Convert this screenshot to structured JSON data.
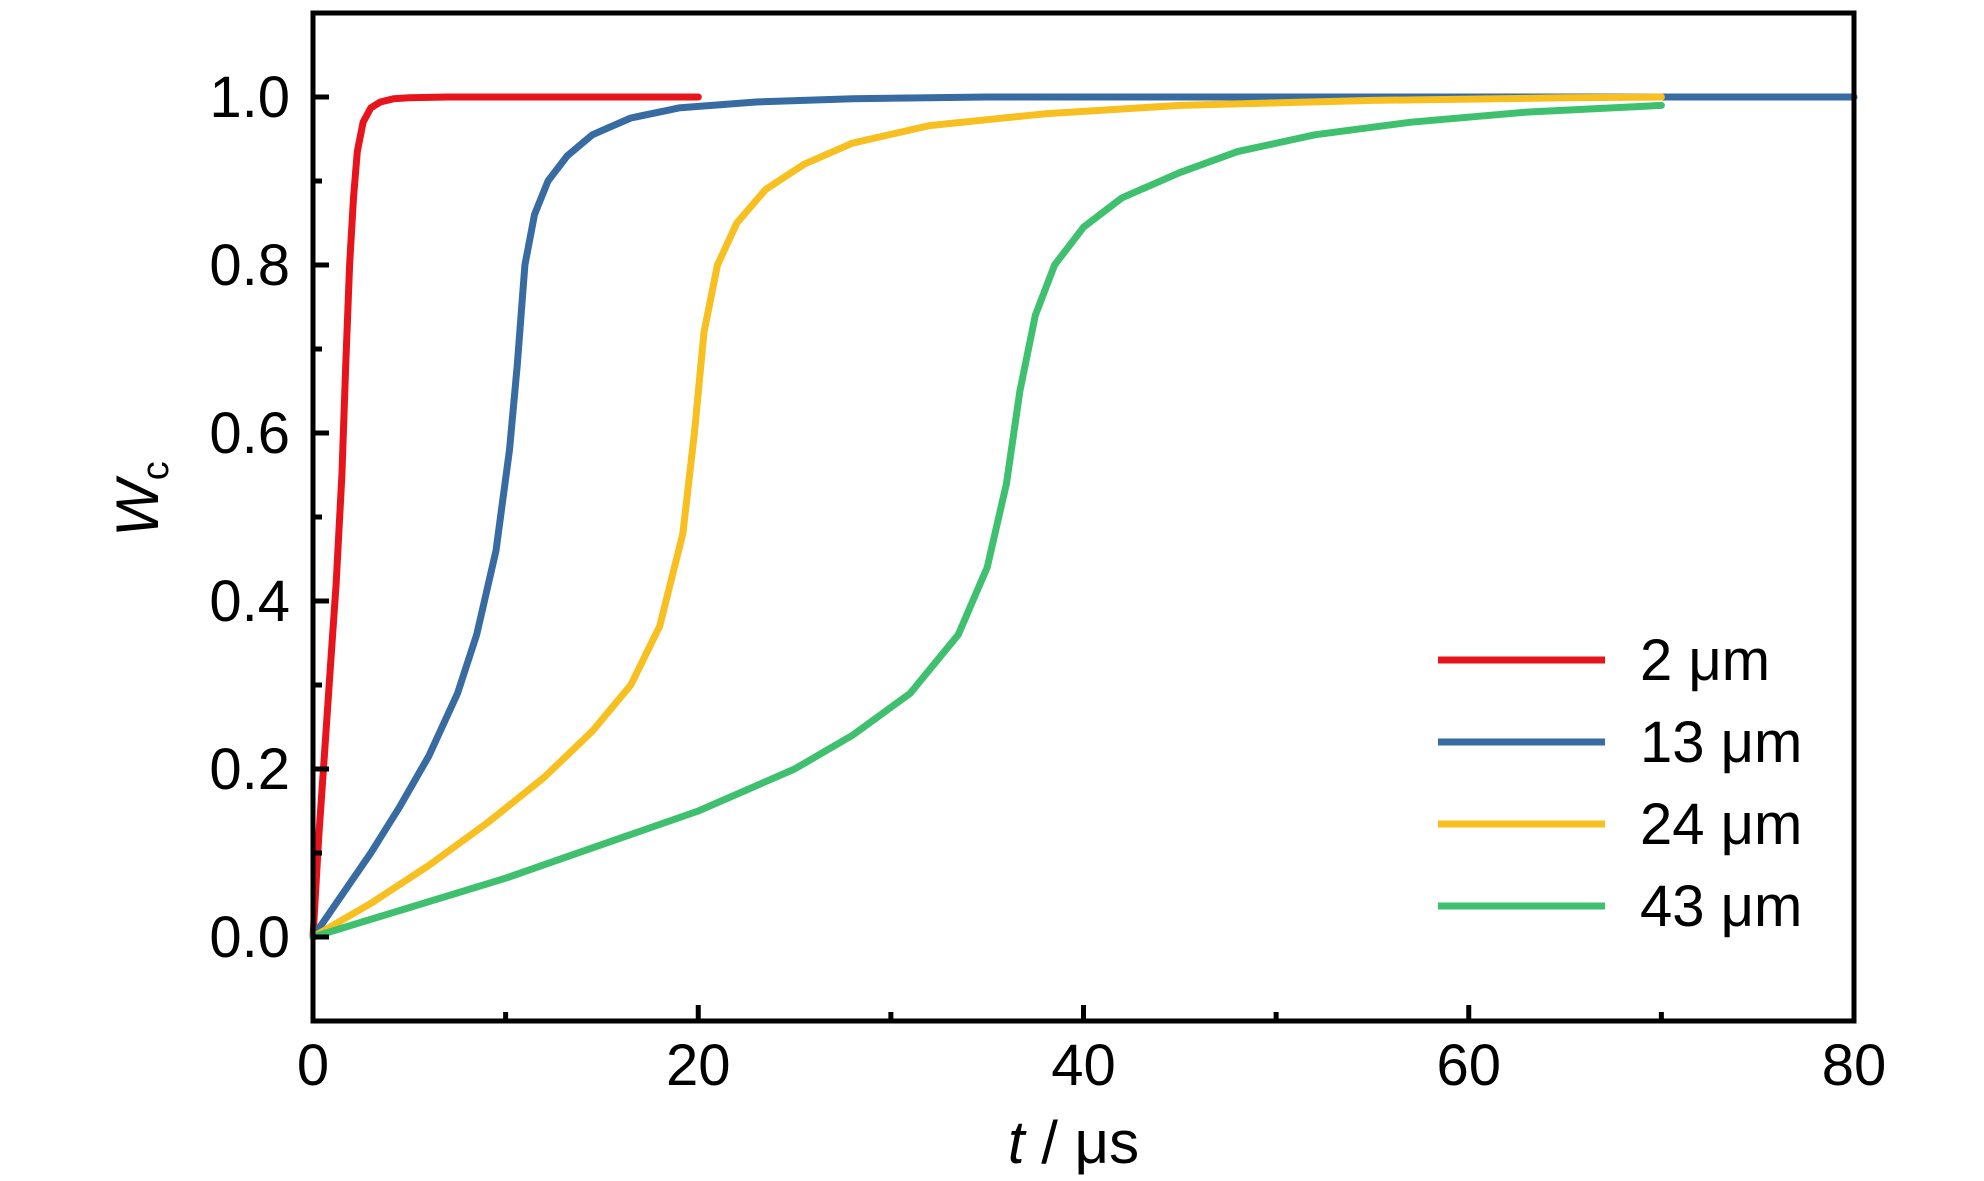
{
  "chart_data": {
    "type": "line",
    "xlabel_italic": "t",
    "xlabel_rest": " / μs",
    "ylabel_main": "W",
    "ylabel_sub": "c",
    "xlim": [
      0,
      80
    ],
    "ylim": [
      -0.1,
      1.1
    ],
    "xticks": [
      0,
      20,
      40,
      60,
      80
    ],
    "xtick_labels": [
      "0",
      "20",
      "40",
      "60",
      "80"
    ],
    "xminor": [
      10,
      30,
      50,
      70
    ],
    "yticks": [
      0.0,
      0.2,
      0.4,
      0.6,
      0.8,
      1.0
    ],
    "ytick_labels": [
      "0.0",
      "0.2",
      "0.4",
      "0.6",
      "0.8",
      "1.0"
    ],
    "yminor": [
      0.1,
      0.3,
      0.5,
      0.7,
      0.9
    ],
    "grid": false,
    "legend_position": "bottom-right",
    "series": [
      {
        "name": "2 μm",
        "color": "#e8141c",
        "x": [
          0,
          0.3,
          0.6,
          0.9,
          1.2,
          1.5,
          1.7,
          1.9,
          2.1,
          2.3,
          2.6,
          3.0,
          3.5,
          4.2,
          5.0,
          7.0,
          10,
          15,
          20
        ],
        "y": [
          0,
          0.12,
          0.22,
          0.32,
          0.42,
          0.55,
          0.68,
          0.8,
          0.88,
          0.935,
          0.97,
          0.987,
          0.994,
          0.998,
          0.999,
          1.0,
          1.0,
          1.0,
          1.0
        ]
      },
      {
        "name": "13 μm",
        "color": "#376ba1",
        "x": [
          0,
          1.5,
          3,
          4.5,
          6,
          7.5,
          8.5,
          9.5,
          10.2,
          10.6,
          11.0,
          11.5,
          12.2,
          13.2,
          14.5,
          16.5,
          19,
          23,
          28,
          35,
          45,
          60,
          80
        ],
        "y": [
          0,
          0.05,
          0.1,
          0.155,
          0.215,
          0.29,
          0.36,
          0.46,
          0.58,
          0.68,
          0.8,
          0.86,
          0.9,
          0.93,
          0.955,
          0.975,
          0.987,
          0.994,
          0.998,
          1.0,
          1.0,
          1.0,
          1.0
        ]
      },
      {
        "name": "24 μm",
        "color": "#f8bf20",
        "x": [
          0,
          3,
          6,
          9,
          12,
          14.5,
          16.5,
          18,
          19.2,
          19.8,
          20.3,
          21.0,
          22.0,
          23.5,
          25.5,
          28,
          32,
          38,
          45,
          55,
          65,
          70
        ],
        "y": [
          0,
          0.04,
          0.085,
          0.135,
          0.19,
          0.245,
          0.3,
          0.37,
          0.48,
          0.6,
          0.72,
          0.8,
          0.85,
          0.89,
          0.92,
          0.945,
          0.966,
          0.98,
          0.99,
          0.996,
          0.999,
          1.0
        ]
      },
      {
        "name": "43 μm",
        "color": "#3ec06f",
        "x": [
          0,
          5,
          10,
          15,
          20,
          25,
          28,
          31,
          33.5,
          35,
          36.0,
          36.7,
          37.5,
          38.5,
          40,
          42,
          45,
          48,
          52,
          57,
          63,
          70
        ],
        "y": [
          0,
          0.035,
          0.07,
          0.11,
          0.15,
          0.2,
          0.24,
          0.29,
          0.36,
          0.44,
          0.54,
          0.65,
          0.74,
          0.8,
          0.845,
          0.88,
          0.91,
          0.935,
          0.955,
          0.97,
          0.982,
          0.99
        ]
      }
    ]
  }
}
